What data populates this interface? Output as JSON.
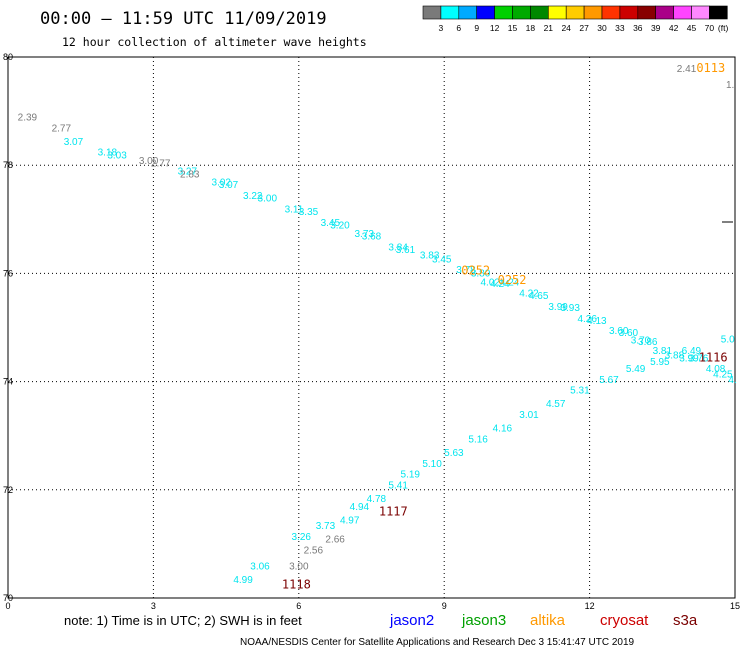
{
  "header": {
    "title": "00:00 – 11:59 UTC 11/09/2019",
    "subtitle": "12 hour collection of altimeter wave heights"
  },
  "colorbar": {
    "colors": [
      "#7a7a7a",
      "#00ffff",
      "#00aaff",
      "#0000ff",
      "#00d000",
      "#00aa00",
      "#008800",
      "#ffff00",
      "#ffcc00",
      "#ff9900",
      "#ff3300",
      "#cc0000",
      "#880000",
      "#aa0088",
      "#ff44ff",
      "#ff88ff",
      "#000000"
    ],
    "labels": [
      "3",
      "6",
      "9",
      "12",
      "15",
      "18",
      "21",
      "24",
      "27",
      "30",
      "33",
      "36",
      "39",
      "42",
      "45",
      "70"
    ],
    "unit": "(ft)"
  },
  "footer": {
    "note": "note:  1) Time is in UTC;  2) SWH is in feet",
    "satellites": [
      {
        "name": "jason2",
        "color": "#0000ff"
      },
      {
        "name": "jason3",
        "color": "#00a000"
      },
      {
        "name": "altika",
        "color": "#ff9900"
      },
      {
        "name": "cryosat",
        "color": "#cc0000"
      },
      {
        "name": "s3a",
        "color": "#7a0000"
      }
    ],
    "credit": "NOAA/NESDIS Center for Satellite Applications and Research    Dec  3 15:41:47 UTC 2019"
  },
  "chart_data": {
    "type": "scatter",
    "title": "00:00 – 11:59 UTC 11/09/2019",
    "subtitle": "12 hour collection of altimeter wave heights",
    "xlabel": "",
    "ylabel": "",
    "xlim": [
      0,
      15
    ],
    "ylim": [
      70,
      80
    ],
    "x_ticks": [
      "0",
      "3",
      "6",
      "9",
      "12",
      "15"
    ],
    "y_ticks": [
      "70",
      "72",
      "74",
      "76",
      "78",
      "80"
    ],
    "grid": true,
    "series": [
      {
        "name": "",
        "color": "#00e5ee",
        "points": [
          {
            "x": 1.35,
            "y": 78.45,
            "label": "3.07"
          },
          {
            "x": 2.05,
            "y": 78.25,
            "label": "3.18"
          },
          {
            "x": 2.25,
            "y": 78.2,
            "label": "3.03"
          },
          {
            "x": 3.7,
            "y": 77.9,
            "label": "3.27"
          },
          {
            "x": 4.4,
            "y": 77.7,
            "label": "3.02"
          },
          {
            "x": 4.55,
            "y": 77.65,
            "label": "3.07"
          },
          {
            "x": 5.05,
            "y": 77.45,
            "label": "3.22"
          },
          {
            "x": 5.35,
            "y": 77.4,
            "label": "3.00"
          },
          {
            "x": 5.9,
            "y": 77.2,
            "label": "3.11"
          },
          {
            "x": 6.2,
            "y": 77.15,
            "label": "3.35"
          },
          {
            "x": 6.65,
            "y": 76.95,
            "label": "3.45"
          },
          {
            "x": 6.85,
            "y": 76.9,
            "label": "3.20"
          },
          {
            "x": 7.35,
            "y": 76.75,
            "label": "3.73"
          },
          {
            "x": 7.5,
            "y": 76.7,
            "label": "3.68"
          },
          {
            "x": 8.05,
            "y": 76.5,
            "label": "3.84"
          },
          {
            "x": 8.2,
            "y": 76.45,
            "label": "3.61"
          },
          {
            "x": 8.7,
            "y": 76.35,
            "label": "3.83"
          },
          {
            "x": 8.95,
            "y": 76.28,
            "label": "3.45"
          },
          {
            "x": 9.45,
            "y": 76.08,
            "label": "3.78"
          },
          {
            "x": 9.75,
            "y": 76.02,
            "label": "3.80"
          },
          {
            "x": 9.95,
            "y": 75.85,
            "label": "4.02"
          },
          {
            "x": 10.15,
            "y": 75.82,
            "label": "4.24"
          },
          {
            "x": 10.35,
            "y": 75.85,
            "label": "4.24"
          },
          {
            "x": 10.75,
            "y": 75.65,
            "label": "4.22"
          },
          {
            "x": 10.95,
            "y": 75.6,
            "label": "4.65"
          },
          {
            "x": 11.35,
            "y": 75.4,
            "label": "3.99"
          },
          {
            "x": 11.6,
            "y": 75.38,
            "label": "3.93"
          },
          {
            "x": 11.95,
            "y": 75.18,
            "label": "4.26"
          },
          {
            "x": 12.15,
            "y": 75.14,
            "label": "4.13"
          },
          {
            "x": 12.6,
            "y": 74.95,
            "label": "3.60"
          },
          {
            "x": 12.8,
            "y": 74.92,
            "label": "3.60"
          },
          {
            "x": 13.05,
            "y": 74.78,
            "label": "3.70"
          },
          {
            "x": 13.2,
            "y": 74.75,
            "label": "3.86"
          },
          {
            "x": 13.5,
            "y": 74.58,
            "label": "3.81"
          },
          {
            "x": 13.75,
            "y": 74.5,
            "label": "3.88"
          },
          {
            "x": 14.05,
            "y": 74.45,
            "label": "3.99"
          },
          {
            "x": 14.25,
            "y": 74.45,
            "label": "3.76"
          },
          {
            "x": 14.1,
            "y": 74.58,
            "label": "6.49"
          },
          {
            "x": 13.45,
            "y": 74.38,
            "label": "5.95"
          },
          {
            "x": 14.85,
            "y": 74.8,
            "label": "5.0"
          },
          {
            "x": 14.6,
            "y": 74.25,
            "label": "4.08"
          },
          {
            "x": 14.75,
            "y": 74.15,
            "label": "4.25"
          },
          {
            "x": 14.95,
            "y": 74.05,
            "label": "4."
          },
          {
            "x": 12.95,
            "y": 74.25,
            "label": "5.49"
          },
          {
            "x": 12.4,
            "y": 74.05,
            "label": "5.67"
          },
          {
            "x": 11.8,
            "y": 73.85,
            "label": "5.31"
          },
          {
            "x": 11.3,
            "y": 73.6,
            "label": "4.57"
          },
          {
            "x": 10.75,
            "y": 73.4,
            "label": "3.01"
          },
          {
            "x": 10.2,
            "y": 73.15,
            "label": "4.16"
          },
          {
            "x": 9.7,
            "y": 72.95,
            "label": "5.16"
          },
          {
            "x": 9.2,
            "y": 72.7,
            "label": "5.63"
          },
          {
            "x": 8.75,
            "y": 72.5,
            "label": "5.10"
          },
          {
            "x": 8.3,
            "y": 72.3,
            "label": "5.19"
          },
          {
            "x": 8.05,
            "y": 72.1,
            "label": "5.41"
          },
          {
            "x": 7.6,
            "y": 71.85,
            "label": "4.78"
          },
          {
            "x": 7.25,
            "y": 71.7,
            "label": "4.94"
          },
          {
            "x": 7.05,
            "y": 71.45,
            "label": "4.97"
          },
          {
            "x": 6.55,
            "y": 71.35,
            "label": "3.73"
          },
          {
            "x": 6.05,
            "y": 71.15,
            "label": "3.26"
          },
          {
            "x": 5.2,
            "y": 70.6,
            "label": "3.06"
          },
          {
            "x": 4.85,
            "y": 70.35,
            "label": "4.99"
          }
        ]
      },
      {
        "name": "",
        "color": "#7a7a7a",
        "points": [
          {
            "x": 0.4,
            "y": 78.9,
            "label": "2.39"
          },
          {
            "x": 1.1,
            "y": 78.7,
            "label": "2.77"
          },
          {
            "x": 2.9,
            "y": 78.1,
            "label": "3.00"
          },
          {
            "x": 3.15,
            "y": 78.05,
            "label": "2.77"
          },
          {
            "x": 3.75,
            "y": 77.85,
            "label": "2.83"
          },
          {
            "x": 6.3,
            "y": 70.9,
            "label": "2.56"
          },
          {
            "x": 6.75,
            "y": 71.1,
            "label": "2.66"
          },
          {
            "x": 6.0,
            "y": 70.6,
            "label": "3.00"
          },
          {
            "x": 14.0,
            "y": 79.8,
            "label": "2.41"
          }
        ]
      }
    ],
    "pass_labels": [
      {
        "x": 9.65,
        "y": 76.05,
        "text": "0252",
        "color": "#ff9900"
      },
      {
        "x": 10.4,
        "y": 75.88,
        "text": "0252",
        "color": "#ff9900"
      },
      {
        "x": 14.5,
        "y": 79.8,
        "text": "0113",
        "color": "#ff9900"
      },
      {
        "x": 14.55,
        "y": 74.45,
        "text": "1116",
        "color": "#7a0000"
      },
      {
        "x": 7.95,
        "y": 71.6,
        "text": "1117",
        "color": "#7a0000"
      },
      {
        "x": 5.95,
        "y": 70.25,
        "text": "1118",
        "color": "#7a0000"
      }
    ],
    "extra_labels": [
      {
        "x": 14.9,
        "y": 79.5,
        "text": "1.",
        "color": "#7a7a7a"
      }
    ]
  }
}
